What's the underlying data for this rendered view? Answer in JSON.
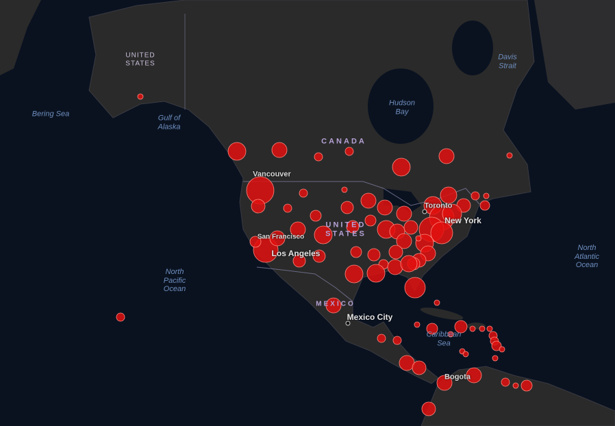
{
  "map": {
    "colors": {
      "ocean": "#0a1220",
      "land": "#2a2a2a",
      "border": "#4a4a55",
      "marker": "#e0100f",
      "marker_stroke": "#ff8a80"
    },
    "labels": {
      "alaska_country": "UNITED\nSTATES",
      "bering_sea": "Bering Sea",
      "gulf_of_alaska": "Gulf of\nAlaska",
      "canada": "CANADA",
      "hudson_bay": "Hudson\nBay",
      "davis_strait": "Davis\nStrait",
      "vancouver": "Vancouver",
      "united_states": "UNITED\nSTATES",
      "san_francisco": "San Francisco",
      "los_angeles": "Los Angeles",
      "toronto": "Toronto",
      "new_york": "New York",
      "mexico": "MEXICO",
      "mexico_city": "Mexico City",
      "north_pacific": "North\nPacific\nOcean",
      "north_atlantic": "North\nAtlantic\nOcean",
      "caribbean_sea": "Caribbean\nSea",
      "bogota": "Bogota"
    }
  }
}
